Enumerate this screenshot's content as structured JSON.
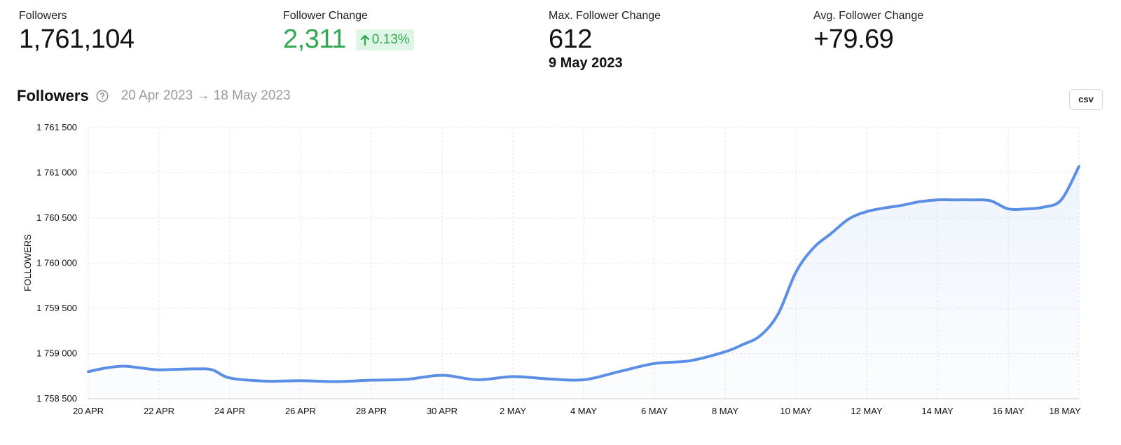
{
  "stats": [
    {
      "label": "Followers",
      "value": "1,761,104",
      "sub": ""
    },
    {
      "label": "Follower Change",
      "value": "2,311",
      "badge": "0.13%"
    },
    {
      "label": "Max. Follower Change",
      "value": "612",
      "sub": "9 May 2023"
    },
    {
      "label": "Avg. Follower Change",
      "value": "+79.69",
      "sub": ""
    }
  ],
  "section": {
    "title": "Followers",
    "date_range": "20 Apr 2023 → 18 May 2023",
    "csv_label": "csv"
  },
  "colors": {
    "positive": "#2fa84f",
    "line": "#5b8fe6",
    "grid": "#e6e6e6"
  },
  "chart_data": {
    "type": "area",
    "ylabel": "FOLLOWERS",
    "ylim": [
      1758500,
      1761500
    ],
    "yticks": [
      1758500,
      1759000,
      1759500,
      1760000,
      1760500,
      1761000,
      1761500
    ],
    "ytick_labels": [
      "1 758 500",
      "1 759 000",
      "1 759 500",
      "1 760 000",
      "1 760 500",
      "1 761 000",
      "1 761 500"
    ],
    "xticks": [
      "20 APR",
      "22 APR",
      "24 APR",
      "26 APR",
      "28 APR",
      "30 APR",
      "2 MAY",
      "4 MAY",
      "6 MAY",
      "8 MAY",
      "10 MAY",
      "12 MAY",
      "14 MAY",
      "16 MAY",
      "18 MAY"
    ],
    "x": [
      "20 Apr",
      "20.5 Apr",
      "21 Apr",
      "21.5 Apr",
      "22 Apr",
      "23 Apr",
      "23.5 Apr",
      "24 Apr",
      "25 Apr",
      "26 Apr",
      "27 Apr",
      "28 Apr",
      "29 Apr",
      "30 Apr",
      "1 May",
      "2 May",
      "3 May",
      "4 May",
      "5 May",
      "6 May",
      "7 May",
      "8 May",
      "8.5 May",
      "9 May",
      "9.5 May",
      "10 May",
      "10.5 May",
      "11 May",
      "11.5 May",
      "12 May",
      "12.5 May",
      "13 May",
      "13.5 May",
      "14 May",
      "14.5 May",
      "15 May",
      "15.5 May",
      "16 May",
      "16.5 May",
      "17 May",
      "17.5 May",
      "18 May"
    ],
    "values": [
      1758800,
      1758840,
      1758860,
      1758840,
      1758820,
      1758830,
      1758820,
      1758730,
      1758695,
      1758700,
      1758690,
      1758705,
      1758715,
      1758760,
      1758710,
      1758745,
      1758720,
      1758710,
      1758800,
      1758890,
      1758920,
      1759020,
      1759100,
      1759200,
      1759440,
      1759900,
      1760170,
      1760330,
      1760490,
      1760570,
      1760610,
      1760640,
      1760680,
      1760700,
      1760700,
      1760700,
      1760690,
      1760600,
      1760600,
      1760620,
      1760700,
      1761070
    ]
  }
}
